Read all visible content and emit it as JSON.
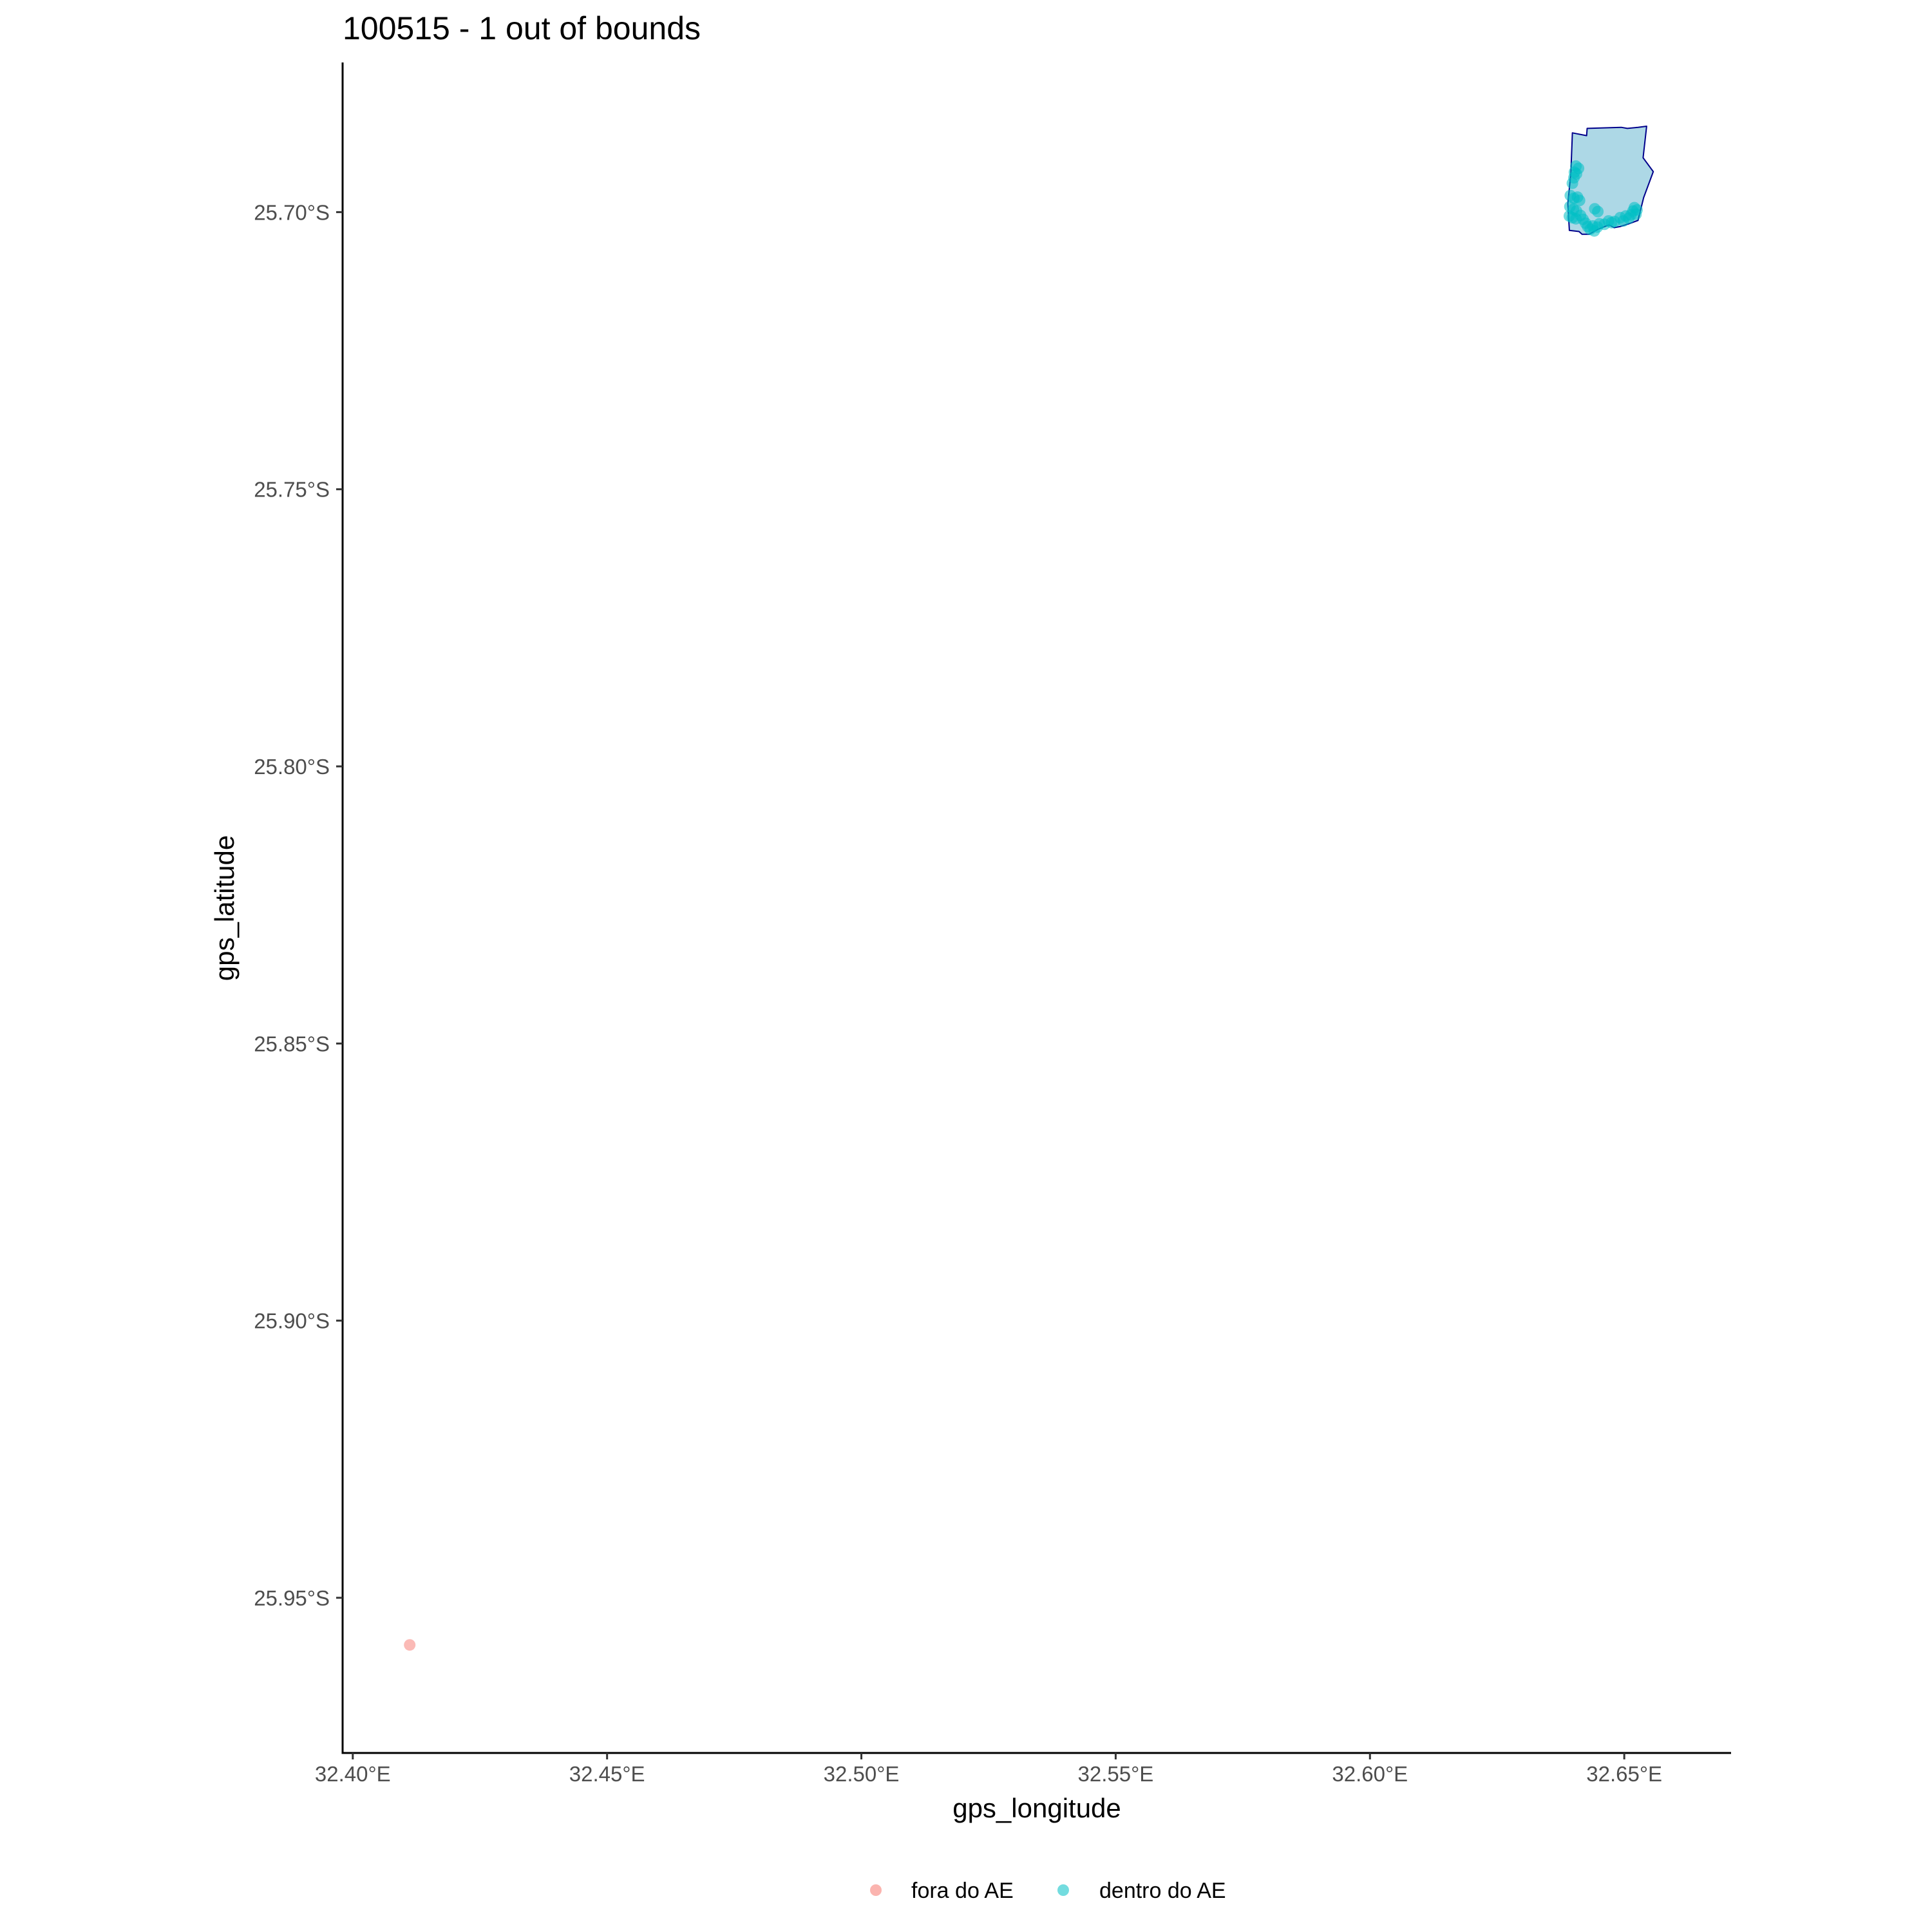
{
  "chart_data": {
    "type": "map",
    "title": "100515 - 1 out of bounds",
    "xlabel": "gps_longitude",
    "ylabel": "gps_latitude",
    "xlim": [
      32.398,
      32.671
    ],
    "ylim": [
      -25.978,
      -25.673
    ],
    "x_ticks": [
      {
        "value": 32.4,
        "label": "32.40°E"
      },
      {
        "value": 32.45,
        "label": "32.45°E"
      },
      {
        "value": 32.5,
        "label": "32.50°E"
      },
      {
        "value": 32.55,
        "label": "32.55°E"
      },
      {
        "value": 32.6,
        "label": "32.60°E"
      },
      {
        "value": 32.65,
        "label": "32.65°E"
      }
    ],
    "y_ticks": [
      {
        "value": -25.7,
        "label": "25.70°S"
      },
      {
        "value": -25.75,
        "label": "25.75°S"
      },
      {
        "value": -25.8,
        "label": "25.80°S"
      },
      {
        "value": -25.85,
        "label": "25.85°S"
      },
      {
        "value": -25.9,
        "label": "25.90°S"
      },
      {
        "value": -25.95,
        "label": "25.95°S"
      }
    ],
    "grid": false,
    "legend_position": "bottom",
    "area_polygon": {
      "fill": "#add8e6",
      "stroke": "#00008b",
      "coords": [
        [
          32.6398,
          -25.6857
        ],
        [
          32.6426,
          -25.6862
        ],
        [
          32.6427,
          -25.6849
        ],
        [
          32.6494,
          -25.6847
        ],
        [
          32.6506,
          -25.6849
        ],
        [
          32.6527,
          -25.6847
        ],
        [
          32.6544,
          -25.6845
        ],
        [
          32.6537,
          -25.6902
        ],
        [
          32.6557,
          -25.6927
        ],
        [
          32.6538,
          -25.6974
        ],
        [
          32.6527,
          -25.7015
        ],
        [
          32.6509,
          -25.7021
        ],
        [
          32.6492,
          -25.7026
        ],
        [
          32.648,
          -25.7028
        ],
        [
          32.647,
          -25.7023
        ],
        [
          32.6448,
          -25.7031
        ],
        [
          32.6431,
          -25.704
        ],
        [
          32.6417,
          -25.704
        ],
        [
          32.6411,
          -25.7035
        ],
        [
          32.6392,
          -25.7033
        ],
        [
          32.6389,
          -25.6985
        ],
        [
          32.6395,
          -25.693
        ]
      ]
    },
    "series": [
      {
        "name": "fora do AE",
        "color": "#f8766d",
        "points": [
          {
            "x": 32.4112,
            "y": -25.9585
          }
        ]
      },
      {
        "name": "dentro do AE",
        "color": "#00bfc4",
        "points": [
          {
            "x": 32.6405,
            "y": -25.6917
          },
          {
            "x": 32.641,
            "y": -25.6921
          },
          {
            "x": 32.6402,
            "y": -25.6928
          },
          {
            "x": 32.6406,
            "y": -25.6931
          },
          {
            "x": 32.6401,
            "y": -25.6938
          },
          {
            "x": 32.6398,
            "y": -25.6948
          },
          {
            "x": 32.6394,
            "y": -25.697
          },
          {
            "x": 32.6401,
            "y": -25.6975
          },
          {
            "x": 32.6408,
            "y": -25.6973
          },
          {
            "x": 32.6412,
            "y": -25.6979
          },
          {
            "x": 32.6393,
            "y": -25.699
          },
          {
            "x": 32.64,
            "y": -25.6995
          },
          {
            "x": 32.6406,
            "y": -25.6998
          },
          {
            "x": 32.6392,
            "y": -25.7007
          },
          {
            "x": 32.6398,
            "y": -25.701
          },
          {
            "x": 32.6405,
            "y": -25.7012
          },
          {
            "x": 32.6414,
            "y": -25.7006
          },
          {
            "x": 32.6419,
            "y": -25.7013
          },
          {
            "x": 32.6424,
            "y": -25.702
          },
          {
            "x": 32.6428,
            "y": -25.7026
          },
          {
            "x": 32.6433,
            "y": -25.7031
          },
          {
            "x": 32.6438,
            "y": -25.7025
          },
          {
            "x": 32.6441,
            "y": -25.7034
          },
          {
            "x": 32.6447,
            "y": -25.7027
          },
          {
            "x": 32.6451,
            "y": -25.7021
          },
          {
            "x": 32.6442,
            "y": -25.6994
          },
          {
            "x": 32.6448,
            "y": -25.6999
          },
          {
            "x": 32.6461,
            "y": -25.7022
          },
          {
            "x": 32.6469,
            "y": -25.7016
          },
          {
            "x": 32.6475,
            "y": -25.7019
          },
          {
            "x": 32.6481,
            "y": -25.7017
          },
          {
            "x": 32.6492,
            "y": -25.701
          },
          {
            "x": 32.6498,
            "y": -25.7016
          },
          {
            "x": 32.6503,
            "y": -25.7007
          },
          {
            "x": 32.6509,
            "y": -25.7011
          },
          {
            "x": 32.6513,
            "y": -25.7005
          },
          {
            "x": 32.6517,
            "y": -25.6998
          },
          {
            "x": 32.652,
            "y": -25.6992
          },
          {
            "x": 32.6523,
            "y": -25.7004
          },
          {
            "x": 32.6525,
            "y": -25.6996
          }
        ]
      }
    ]
  }
}
